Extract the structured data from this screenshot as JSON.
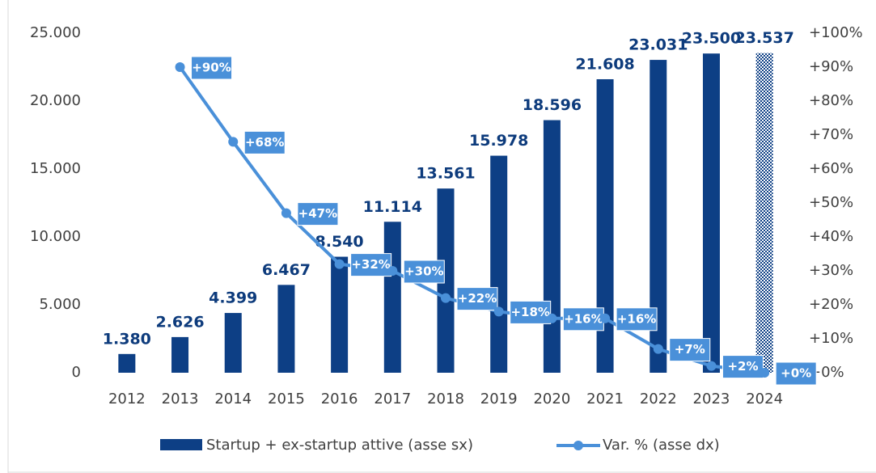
{
  "chart_data": {
    "type": "combo",
    "categories": [
      "2012",
      "2013",
      "2014",
      "2015",
      "2016",
      "2017",
      "2018",
      "2019",
      "2020",
      "2021",
      "2022",
      "2023",
      "2024"
    ],
    "series": [
      {
        "name": "Startup + ex-startup attive (asse sx)",
        "type": "bar",
        "color": "#0d3f85",
        "values": [
          1380,
          2626,
          4399,
          6467,
          8540,
          11114,
          13561,
          15978,
          18596,
          21608,
          23031,
          23500,
          23537
        ],
        "value_labels": [
          "1.380",
          "2.626",
          "4.399",
          "6.467",
          "8.540",
          "11.114",
          "13.561",
          "15.978",
          "18.596",
          "21.608",
          "23.031",
          "23.500",
          "23.537"
        ],
        "patterned": [
          12
        ]
      },
      {
        "name": "Var. % (asse dx)",
        "type": "line",
        "axis": "y2",
        "color": "#4a90d9",
        "values": [
          null,
          90,
          68,
          47,
          32,
          30,
          22,
          18,
          16,
          16,
          7,
          2,
          0
        ],
        "value_labels": [
          null,
          "+90%",
          "+68%",
          "+47%",
          "+32%",
          "+30%",
          "+22%",
          "+18%",
          "+16%",
          "+16%",
          "+7%",
          "+2%",
          "+0%"
        ]
      }
    ],
    "ylim": [
      0,
      25000
    ],
    "yticks": [
      0,
      {
        "value": 5000,
        "label": "5.000"
      },
      {
        "value": 10000,
        "label": "10.000"
      },
      {
        "value": 15000,
        "label": "15.000"
      },
      {
        "value": 20000,
        "label": "20.000"
      },
      {
        "value": 25000,
        "label": "25.000"
      }
    ],
    "y2lim": [
      0,
      100
    ],
    "y2ticks": [
      {
        "value": 0,
        "label": "+0%"
      },
      {
        "value": 10,
        "label": "+10%"
      },
      {
        "value": 20,
        "label": "+20%"
      },
      {
        "value": 30,
        "label": "+30%"
      },
      {
        "value": 40,
        "label": "+40%"
      },
      {
        "value": 50,
        "label": "+50%"
      },
      {
        "value": 60,
        "label": "+60%"
      },
      {
        "value": 70,
        "label": "+70%"
      },
      {
        "value": 80,
        "label": "+80%"
      },
      {
        "value": 90,
        "label": "+90%"
      },
      {
        "value": 100,
        "label": "+100%"
      }
    ],
    "grid": false,
    "legend": "bottom"
  }
}
